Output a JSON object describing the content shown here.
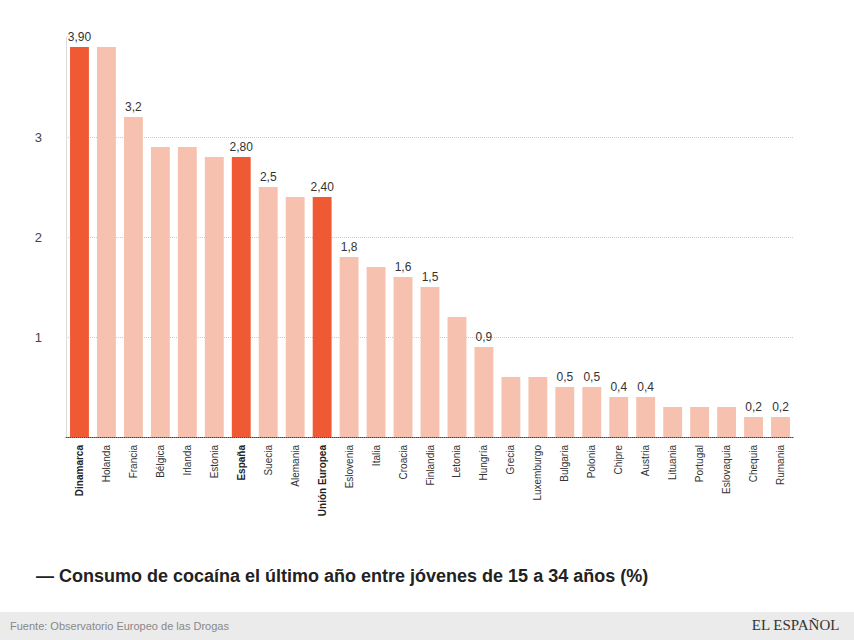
{
  "chart_data": {
    "type": "bar",
    "title": "— Consumo de cocaína el último año entre jóvenes de 15 a 34 años (%)",
    "annotations": [
      "Fuente: Observatorio Europeo de las Drogas",
      "EL ESPAÑOL"
    ],
    "categories": [
      "Dinamarca",
      "Holanda",
      "Francia",
      "Bélgica",
      "Irlanda",
      "Estonia",
      "España",
      "Suecia",
      "Alemania",
      "Unión Europea",
      "Eslovenia",
      "Italia",
      "Croacia",
      "Finlandia",
      "Letonia",
      "Hungría",
      "Grecia",
      "Luxemburgo",
      "Bulgaria",
      "Polonia",
      "Chipre",
      "Austria",
      "Lituania",
      "Portugal",
      "Eslovaquia",
      "Chequia",
      "Rumania"
    ],
    "values": [
      3.9,
      3.9,
      3.2,
      2.9,
      2.9,
      2.8,
      2.8,
      2.5,
      2.4,
      2.4,
      1.8,
      1.7,
      1.6,
      1.5,
      1.2,
      0.9,
      0.6,
      0.6,
      0.5,
      0.5,
      0.4,
      0.4,
      0.3,
      0.3,
      0.3,
      0.2,
      0.2
    ],
    "value_labels": [
      "3,90",
      null,
      "3,2",
      null,
      null,
      null,
      "2,80",
      "2,5",
      null,
      "2,40",
      "1,8",
      null,
      "1,6",
      "1,5",
      null,
      "0,9",
      null,
      null,
      "0,5",
      "0,5",
      "0,4",
      "0,4",
      null,
      null,
      null,
      "0,2",
      "0,2"
    ],
    "colors": [
      "#ef5a34",
      "#f6c1ae",
      "#f6c1ae",
      "#f6c1ae",
      "#f6c1ae",
      "#f6c1ae",
      "#ef5a34",
      "#f6c1ae",
      "#f6c1ae",
      "#ef5a34",
      "#f6c1ae",
      "#f6c1ae",
      "#f6c1ae",
      "#f6c1ae",
      "#f6c1ae",
      "#f6c1ae",
      "#f6c1ae",
      "#f6c1ae",
      "#f6c1ae",
      "#f6c1ae",
      "#f6c1ae",
      "#f6c1ae",
      "#f6c1ae",
      "#f6c1ae",
      "#f6c1ae",
      "#f6c1ae",
      "#f6c1ae"
    ],
    "ylim": [
      0,
      4
    ],
    "yticks": [
      1,
      2,
      3
    ],
    "grid": true,
    "data_labels": true
  }
}
